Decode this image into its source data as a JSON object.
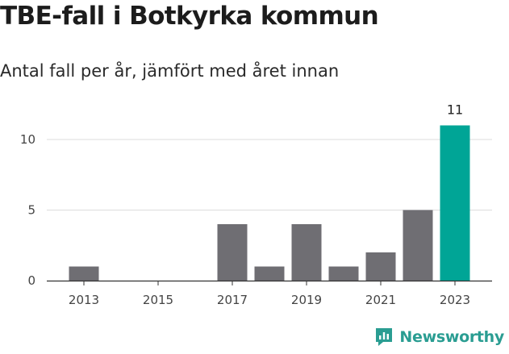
{
  "colors": {
    "bar": "#6f6e73",
    "highlight": "#00a596",
    "grid": "#dcdcdc",
    "axis": "#333333",
    "brand": "#2a9d92"
  },
  "brand": {
    "name": "Newsworthy",
    "icon": "newsworthy-logo-icon"
  },
  "chart_data": {
    "type": "bar",
    "title": "TBE-fall i Botkyrka kommun",
    "subtitle": "Antal fall per år, jämfört med året innan",
    "x": [
      2013,
      2014,
      2015,
      2016,
      2017,
      2018,
      2019,
      2020,
      2021,
      2022,
      2023
    ],
    "values": [
      1,
      0,
      0,
      0,
      4,
      1,
      4,
      1,
      2,
      5,
      11
    ],
    "highlight_index": 10,
    "data_labels": [
      {
        "index": 10,
        "text": "11"
      }
    ],
    "x_tick_labels": [
      "2013",
      "2015",
      "2017",
      "2019",
      "2021",
      "2023"
    ],
    "y_ticks": [
      0,
      5,
      10
    ],
    "ylim": [
      0,
      11
    ],
    "grid": true,
    "legend": false
  }
}
